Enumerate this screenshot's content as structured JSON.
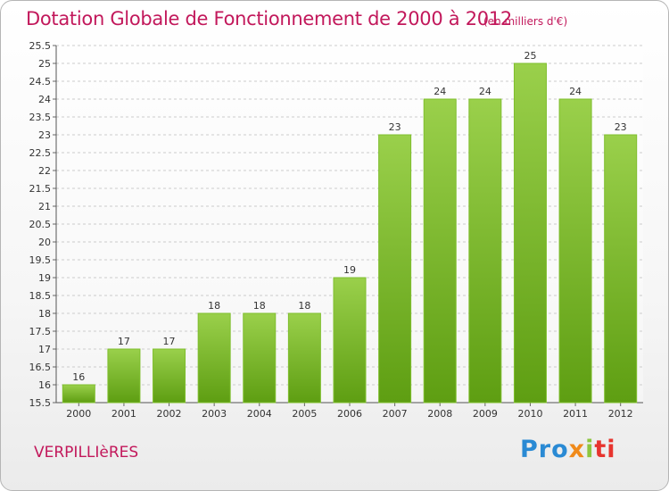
{
  "header": {
    "title": "Dotation Globale de Fonctionnement de 2000 à 2012",
    "unit": "(en milliers d'€)"
  },
  "footer": {
    "town": "VERPILLIèRES",
    "logo": [
      "Pro",
      "x",
      "i",
      "ti"
    ]
  },
  "colors": {
    "bar_top": "#9ad04b",
    "bar_bottom": "#5e9e12",
    "title": "#c2185b",
    "grid": "#cccccc"
  },
  "chart_data": {
    "type": "bar",
    "title": "Dotation Globale de Fonctionnement de 2000 à 2012",
    "subtitle": "(en milliers d'€)",
    "categories": [
      "2000",
      "2001",
      "2002",
      "2003",
      "2004",
      "2005",
      "2006",
      "2007",
      "2008",
      "2009",
      "2010",
      "2011",
      "2012"
    ],
    "values": [
      16,
      17,
      17,
      18,
      18,
      18,
      19,
      23,
      24,
      24,
      25,
      24,
      23
    ],
    "value_labels": [
      "16",
      "17",
      "17",
      "18",
      "18",
      "18",
      "19",
      "23",
      "24",
      "24",
      "25",
      "24",
      "23"
    ],
    "ylim": [
      15.5,
      25.5
    ],
    "yticks": [
      15.5,
      16,
      16.5,
      17,
      17.5,
      18,
      18.5,
      19,
      19.5,
      20,
      20.5,
      21,
      21.5,
      22,
      22.5,
      23,
      23.5,
      24,
      24.5,
      25,
      25.5
    ],
    "ytick_labels": [
      "15.5",
      "16",
      "16.5",
      "17",
      "17.5",
      "18",
      "18.5",
      "19",
      "19.5",
      "20",
      "20.5",
      "21",
      "21.5",
      "22",
      "22.5",
      "23",
      "23.5",
      "24",
      "24.5",
      "25",
      "25.5"
    ],
    "grid": true,
    "legend": "none"
  }
}
